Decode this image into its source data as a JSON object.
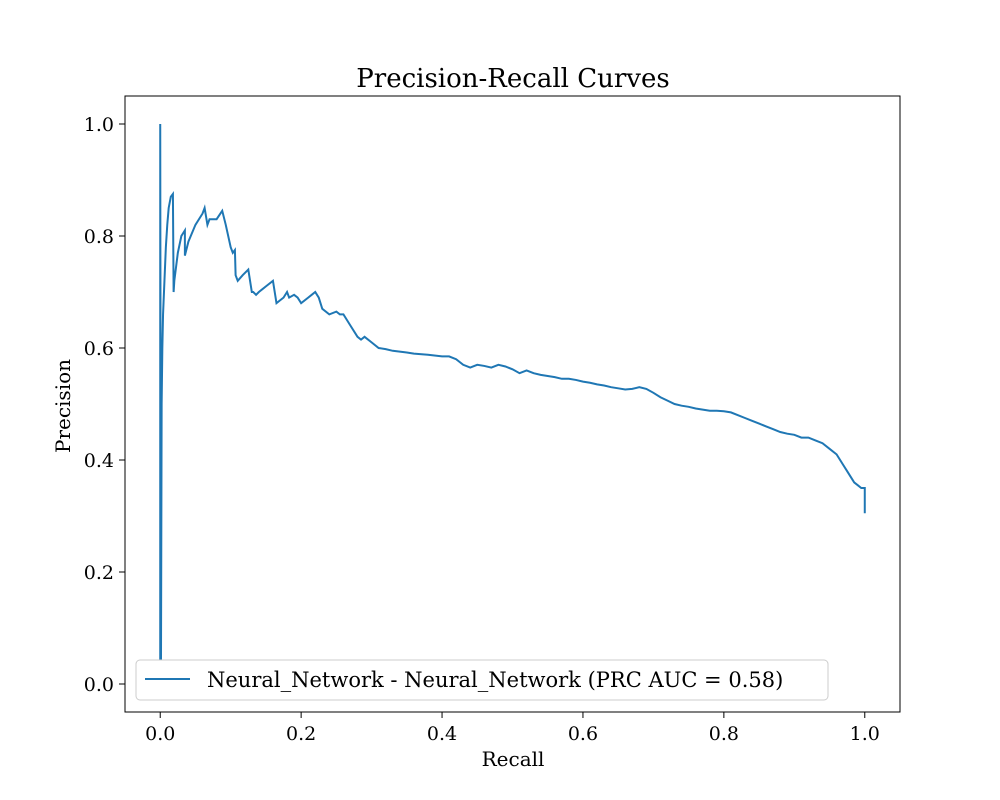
{
  "chart_data": {
    "type": "line",
    "title": "Precision-Recall Curves",
    "xlabel": "Recall",
    "ylabel": "Precision",
    "xlim": [
      -0.05,
      1.05
    ],
    "ylim": [
      -0.05,
      1.05
    ],
    "x_ticks": [
      0.0,
      0.2,
      0.4,
      0.6,
      0.8,
      1.0
    ],
    "x_tick_labels": [
      "0.0",
      "0.2",
      "0.4",
      "0.6",
      "0.8",
      "1.0"
    ],
    "y_ticks": [
      0.0,
      0.2,
      0.4,
      0.6,
      0.8,
      1.0
    ],
    "y_tick_labels": [
      "0.0",
      "0.2",
      "0.4",
      "0.6",
      "0.8",
      "1.0"
    ],
    "grid": false,
    "legend_position": "lower-left",
    "series": [
      {
        "name": "Neural_Network - Neural_Network (PRC AUC = 0.58)",
        "color": "#1f77b4",
        "x": [
          0.0,
          0.0,
          0.001,
          0.002,
          0.003,
          0.004,
          0.006,
          0.008,
          0.01,
          0.012,
          0.015,
          0.018,
          0.019,
          0.02,
          0.025,
          0.03,
          0.035,
          0.035,
          0.04,
          0.05,
          0.06,
          0.063,
          0.067,
          0.07,
          0.08,
          0.088,
          0.093,
          0.1,
          0.103,
          0.106,
          0.107,
          0.11,
          0.117,
          0.125,
          0.13,
          0.132,
          0.136,
          0.14,
          0.145,
          0.15,
          0.16,
          0.165,
          0.17,
          0.175,
          0.18,
          0.183,
          0.19,
          0.195,
          0.2,
          0.21,
          0.215,
          0.22,
          0.225,
          0.23,
          0.24,
          0.25,
          0.255,
          0.26,
          0.27,
          0.28,
          0.285,
          0.29,
          0.3,
          0.31,
          0.32,
          0.33,
          0.35,
          0.36,
          0.38,
          0.4,
          0.41,
          0.42,
          0.425,
          0.43,
          0.44,
          0.45,
          0.46,
          0.47,
          0.48,
          0.49,
          0.5,
          0.51,
          0.52,
          0.53,
          0.54,
          0.55,
          0.56,
          0.57,
          0.58,
          0.59,
          0.6,
          0.61,
          0.62,
          0.63,
          0.64,
          0.65,
          0.66,
          0.67,
          0.68,
          0.69,
          0.7,
          0.71,
          0.72,
          0.73,
          0.74,
          0.75,
          0.76,
          0.77,
          0.78,
          0.79,
          0.8,
          0.81,
          0.82,
          0.83,
          0.84,
          0.85,
          0.86,
          0.87,
          0.88,
          0.89,
          0.9,
          0.91,
          0.92,
          0.93,
          0.94,
          0.95,
          0.96,
          0.97,
          0.975,
          0.98,
          0.985,
          0.99,
          0.995,
          1.0,
          1.0
        ],
        "y": [
          0.04,
          1.0,
          0.0,
          0.5,
          0.6,
          0.66,
          0.72,
          0.78,
          0.82,
          0.85,
          0.87,
          0.875,
          0.7,
          0.72,
          0.77,
          0.8,
          0.81,
          0.765,
          0.79,
          0.82,
          0.84,
          0.85,
          0.82,
          0.83,
          0.83,
          0.845,
          0.82,
          0.78,
          0.77,
          0.775,
          0.73,
          0.72,
          0.73,
          0.74,
          0.7,
          0.7,
          0.695,
          0.7,
          0.705,
          0.71,
          0.72,
          0.68,
          0.685,
          0.69,
          0.7,
          0.69,
          0.695,
          0.69,
          0.68,
          0.69,
          0.695,
          0.7,
          0.69,
          0.67,
          0.66,
          0.665,
          0.66,
          0.66,
          0.64,
          0.62,
          0.615,
          0.62,
          0.61,
          0.6,
          0.598,
          0.595,
          0.592,
          0.59,
          0.588,
          0.585,
          0.585,
          0.58,
          0.575,
          0.57,
          0.565,
          0.57,
          0.568,
          0.565,
          0.57,
          0.567,
          0.562,
          0.555,
          0.56,
          0.555,
          0.552,
          0.55,
          0.548,
          0.545,
          0.545,
          0.543,
          0.54,
          0.538,
          0.535,
          0.533,
          0.53,
          0.528,
          0.526,
          0.527,
          0.53,
          0.527,
          0.52,
          0.512,
          0.506,
          0.5,
          0.497,
          0.495,
          0.492,
          0.49,
          0.488,
          0.488,
          0.487,
          0.485,
          0.48,
          0.475,
          0.47,
          0.465,
          0.46,
          0.455,
          0.45,
          0.447,
          0.445,
          0.44,
          0.44,
          0.435,
          0.43,
          0.42,
          0.41,
          0.39,
          0.38,
          0.37,
          0.36,
          0.355,
          0.35,
          0.35,
          0.305
        ]
      }
    ]
  }
}
